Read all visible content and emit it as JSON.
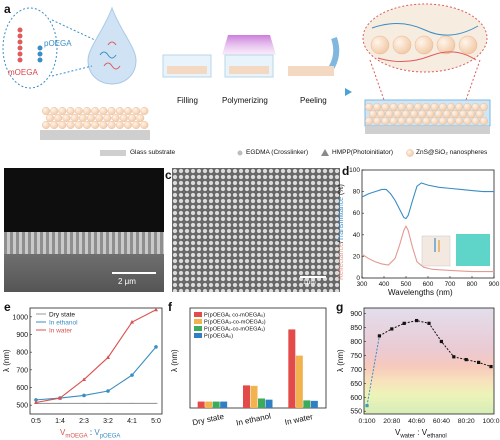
{
  "panels": {
    "a": "a",
    "b": "b",
    "c": "c",
    "d": "d",
    "e": "e",
    "f": "f",
    "g": "g"
  },
  "panel_a": {
    "molecule_labels": [
      "pOEGA",
      "mOEGA"
    ],
    "steps": [
      "Filling",
      "Polymerizing",
      "Peeling"
    ],
    "legend": [
      {
        "label": "Glass substrate",
        "icon": "grey-rectangle"
      },
      {
        "label": "EGDMA (Crosslinker)",
        "icon": "grey-circle"
      },
      {
        "label": "HMPP(Photoinitiator)",
        "icon": "grey-triangle"
      },
      {
        "label": "ZnS@SiO₂ nanospheres",
        "icon": "sphere"
      }
    ]
  },
  "panel_b": {
    "scalebar": "2 μm"
  },
  "panel_c": {
    "scalebar": "1μm"
  },
  "panel_d": {
    "ylabel_left": "Reflectance",
    "ylabel_sep": "/",
    "ylabel_right": "Transmittance",
    "ylabel_unit": " (%)",
    "xlabel": "Wavelengths (nm)",
    "colors": {
      "reflectance": "#e39a8f",
      "transmittance": "#3a8dc5"
    }
  },
  "panel_e": {
    "ylabel": "λ (nm)",
    "xlabel_1": "V",
    "xlabel_1_sub": "mOEGA",
    "xlabel_sep": " : ",
    "xlabel_2": "V",
    "xlabel_2_sub": "pOEGA",
    "legend": [
      "Dry state",
      "In ethanol",
      "In water"
    ]
  },
  "panel_f": {
    "ylabel": "λ (nm)",
    "legend": [
      "P(pOEGA₁ co-mOEGA₀)",
      "P(pOEGA₃-co-mOEGA₂)",
      "P(pOEGA₁-co-mOEGA₁)",
      "P(pOEGA₀)"
    ]
  },
  "panel_g": {
    "ylabel": "λ (nm)",
    "xlabel_1": "V",
    "xlabel_1_sub": "water",
    "xlabel_sep": " : ",
    "xlabel_2": "V",
    "xlabel_2_sub": "ethanol"
  },
  "chart_data": [
    {
      "id": "d",
      "type": "line",
      "xlabel": "Wavelengths (nm)",
      "ylabel": "Reflectance/Transmittance (%)",
      "xlim": [
        300,
        900
      ],
      "ylim": [
        0,
        100
      ],
      "xticks": [
        300,
        400,
        500,
        600,
        700,
        800,
        900
      ],
      "yticks": [
        0,
        20,
        40,
        60,
        80,
        100
      ],
      "series": [
        {
          "name": "Transmittance",
          "color": "#3a8dc5",
          "x": [
            300,
            330,
            360,
            390,
            410,
            430,
            450,
            470,
            490,
            500,
            510,
            530,
            550,
            570,
            600,
            650,
            700,
            750,
            800,
            850,
            900
          ],
          "y": [
            75,
            78,
            80,
            82,
            82,
            78,
            72,
            64,
            56,
            55,
            58,
            72,
            85,
            88,
            86,
            84,
            83,
            82,
            81,
            80,
            80
          ]
        },
        {
          "name": "Reflectance",
          "color": "#e39a8f",
          "x": [
            300,
            330,
            360,
            390,
            420,
            450,
            470,
            490,
            500,
            510,
            530,
            550,
            580,
            620,
            700,
            800,
            900
          ],
          "y": [
            22,
            18,
            15,
            13,
            12,
            18,
            30,
            44,
            48,
            44,
            28,
            15,
            10,
            8,
            7,
            6,
            6
          ]
        }
      ]
    },
    {
      "id": "e",
      "type": "line",
      "categories": [
        "0:5",
        "1:4",
        "2:3",
        "3:2",
        "4:1",
        "5:0"
      ],
      "ylabel": "λ (nm)",
      "ylim": [
        450,
        1050
      ],
      "yticks": [
        500,
        600,
        700,
        800,
        900,
        1000
      ],
      "series": [
        {
          "name": "Dry state",
          "color": "#9a9a9a",
          "values": [
            510,
            510,
            510,
            510,
            510,
            510
          ]
        },
        {
          "name": "In ethanol",
          "color": "#3a8dc5",
          "values": [
            530,
            540,
            555,
            580,
            670,
            830
          ]
        },
        {
          "name": "In water",
          "color": "#d9534f",
          "values": [
            515,
            540,
            645,
            770,
            970,
            1040
          ]
        }
      ]
    },
    {
      "id": "f",
      "type": "bar",
      "categories": [
        "Dry state",
        "In ethanol",
        "In water"
      ],
      "ylabel": "λ (nm)",
      "ylim": [
        480,
        900
      ],
      "series": [
        {
          "name": "P(pOEGA₁ co-mOEGA₀)",
          "color": "#e34a4a",
          "values": [
            507,
            575,
            810
          ]
        },
        {
          "name": "P(pOEGA₃-co-mOEGA₂)",
          "color": "#f2b24e",
          "values": [
            507,
            573,
            700
          ]
        },
        {
          "name": "P(pOEGA₁-co-mOEGA₁)",
          "color": "#3daa5c",
          "values": [
            507,
            520,
            512
          ]
        },
        {
          "name": "P(pOEGA₀)",
          "color": "#2f7fc2",
          "values": [
            507,
            515,
            510
          ]
        }
      ]
    },
    {
      "id": "g",
      "type": "line",
      "categories": [
        "0:100",
        "20:80",
        "40:60",
        "60:40",
        "80:20",
        "100:0"
      ],
      "ylabel": "λ (nm)",
      "ylim": [
        540,
        920
      ],
      "yticks": [
        550,
        600,
        650,
        700,
        750,
        800,
        850,
        900
      ],
      "x": [
        0,
        10,
        20,
        30,
        40,
        50,
        60,
        70,
        80,
        90,
        100
      ],
      "series": [
        {
          "name": "",
          "values": [
            570,
            820,
            845,
            865,
            875,
            865,
            800,
            745,
            735,
            725,
            710
          ]
        }
      ]
    }
  ]
}
